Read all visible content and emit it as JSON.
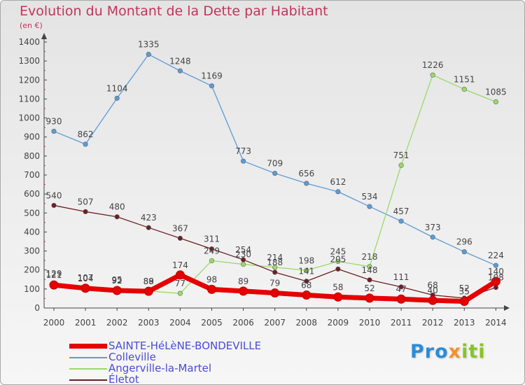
{
  "header": {
    "title": "Evolution du Montant de la Dette par Habitant",
    "unit": "(en €)"
  },
  "brand": {
    "part1": "Pro",
    "part2": "x",
    "part3": "iti"
  },
  "colors": {
    "title": "#c1345b",
    "legend_text": "#4b4bd6",
    "sainte": "#e60000",
    "colleville": "#5b9bd5",
    "angerville": "#9bd969",
    "eletot": "#6b1f24"
  },
  "chart_data": {
    "type": "line",
    "title": "Evolution du Montant de la Dette par Habitant",
    "ylabel": "(en €)",
    "xlabel": "",
    "ylim": [
      0,
      1400
    ],
    "yticks": [
      0,
      100,
      200,
      300,
      400,
      500,
      600,
      700,
      800,
      900,
      1000,
      1100,
      1200,
      1300,
      1400
    ],
    "grid": false,
    "legend_position": "bottom-left",
    "x": [
      "2000",
      "2001",
      "2002",
      "2003",
      "2004",
      "2005",
      "2006",
      "2007",
      "2008",
      "2009",
      "2010",
      "2011",
      "2012",
      "2013",
      "2014"
    ],
    "series": [
      {
        "name": "SAINTE-HéLèNE-BONDEVILLE",
        "color": "#e60000",
        "values": [
          121,
          104,
          92,
          88,
          174,
          98,
          89,
          79,
          68,
          58,
          52,
          47,
          40,
          35,
          140
        ]
      },
      {
        "name": "Colleville",
        "color": "#5b9bd5",
        "values": [
          930,
          862,
          1104,
          1335,
          1248,
          1169,
          773,
          709,
          656,
          612,
          534,
          457,
          373,
          296,
          224
        ]
      },
      {
        "name": "Angerville-la-Martel",
        "color": "#9bd969",
        "values": [
          129,
          107,
          95,
          89,
          77,
          249,
          230,
          214,
          198,
          245,
          218,
          751,
          1226,
          1151,
          1085
        ]
      },
      {
        "name": "Életot",
        "color": "#6b1f24",
        "values": [
          540,
          507,
          480,
          423,
          367,
          311,
          254,
          188,
          141,
          205,
          148,
          111,
          68,
          52,
          108
        ]
      }
    ]
  }
}
